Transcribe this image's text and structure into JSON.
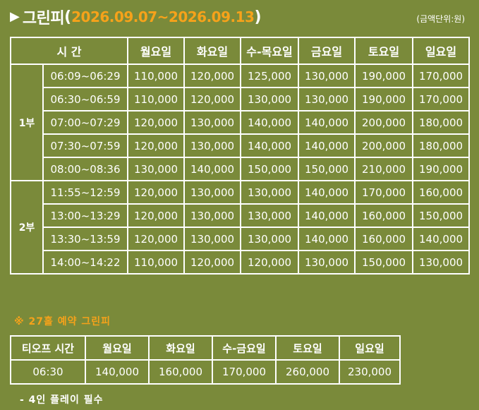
{
  "header": {
    "arrow": "▶",
    "title": "그린피",
    "open_paren": "(",
    "date_range": "2026.09.07~2026.09.13",
    "close_paren": ")",
    "unit": "(금액단위:원)"
  },
  "main_table": {
    "headers": [
      "시 간",
      "월요일",
      "화요일",
      "수-목요일",
      "금요일",
      "토요일",
      "일요일"
    ],
    "parts": [
      {
        "label": "1부",
        "rows": [
          {
            "time": "06:09~06:29",
            "prices": [
              "110,000",
              "120,000",
              "125,000",
              "130,000",
              "190,000",
              "170,000"
            ]
          },
          {
            "time": "06:30~06:59",
            "prices": [
              "110,000",
              "120,000",
              "130,000",
              "130,000",
              "190,000",
              "170,000"
            ]
          },
          {
            "time": "07:00~07:29",
            "prices": [
              "120,000",
              "130,000",
              "140,000",
              "140,000",
              "200,000",
              "180,000"
            ]
          },
          {
            "time": "07:30~07:59",
            "prices": [
              "120,000",
              "130,000",
              "140,000",
              "140,000",
              "200,000",
              "180,000"
            ]
          },
          {
            "time": "08:00~08:36",
            "prices": [
              "130,000",
              "140,000",
              "150,000",
              "150,000",
              "210,000",
              "190,000"
            ]
          }
        ]
      },
      {
        "label": "2부",
        "rows": [
          {
            "time": "11:55~12:59",
            "prices": [
              "120,000",
              "130,000",
              "130,000",
              "140,000",
              "170,000",
              "160,000"
            ]
          },
          {
            "time": "13:00~13:29",
            "prices": [
              "120,000",
              "130,000",
              "130,000",
              "140,000",
              "160,000",
              "150,000"
            ]
          },
          {
            "time": "13:30~13:59",
            "prices": [
              "120,000",
              "130,000",
              "130,000",
              "140,000",
              "160,000",
              "140,000"
            ]
          },
          {
            "time": "14:00~14:22",
            "prices": [
              "110,000",
              "120,000",
              "120,000",
              "130,000",
              "150,000",
              "130,000"
            ]
          }
        ]
      }
    ]
  },
  "promo": {
    "title": "※ 27홀 예약 그린피",
    "headers": [
      "티오프 시간",
      "월요일",
      "화요일",
      "수-금요일",
      "토요일",
      "일요일"
    ],
    "row": [
      "06:30",
      "140,000",
      "160,000",
      "170,000",
      "260,000",
      "230,000"
    ],
    "note": "- 4인 플레이 필수"
  }
}
